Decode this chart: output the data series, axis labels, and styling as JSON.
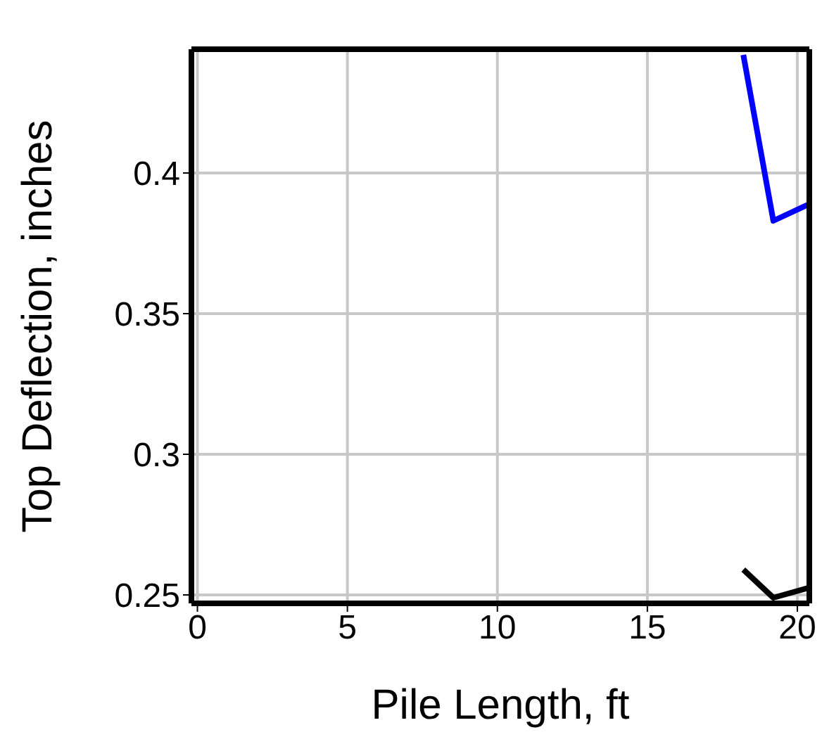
{
  "chart_data": {
    "type": "line",
    "xlabel": "Pile Length, ft",
    "ylabel": "Top Deflection, inches",
    "xlim": [
      -0.2,
      20.4
    ],
    "xticks": [
      0,
      5,
      10,
      15,
      20
    ],
    "ylim": [
      0.247,
      0.444
    ],
    "yticks": [
      0.25,
      0.3,
      0.35,
      0.4
    ],
    "grid": true,
    "series": [
      {
        "color": "#0000ff",
        "x": [
          18.2,
          19.2,
          20.4
        ],
        "values": [
          0.442,
          0.383,
          0.389
        ]
      },
      {
        "color": "#000000",
        "x": [
          18.2,
          19.2,
          20.4
        ],
        "values": [
          0.259,
          0.249,
          0.2526
        ]
      }
    ]
  }
}
